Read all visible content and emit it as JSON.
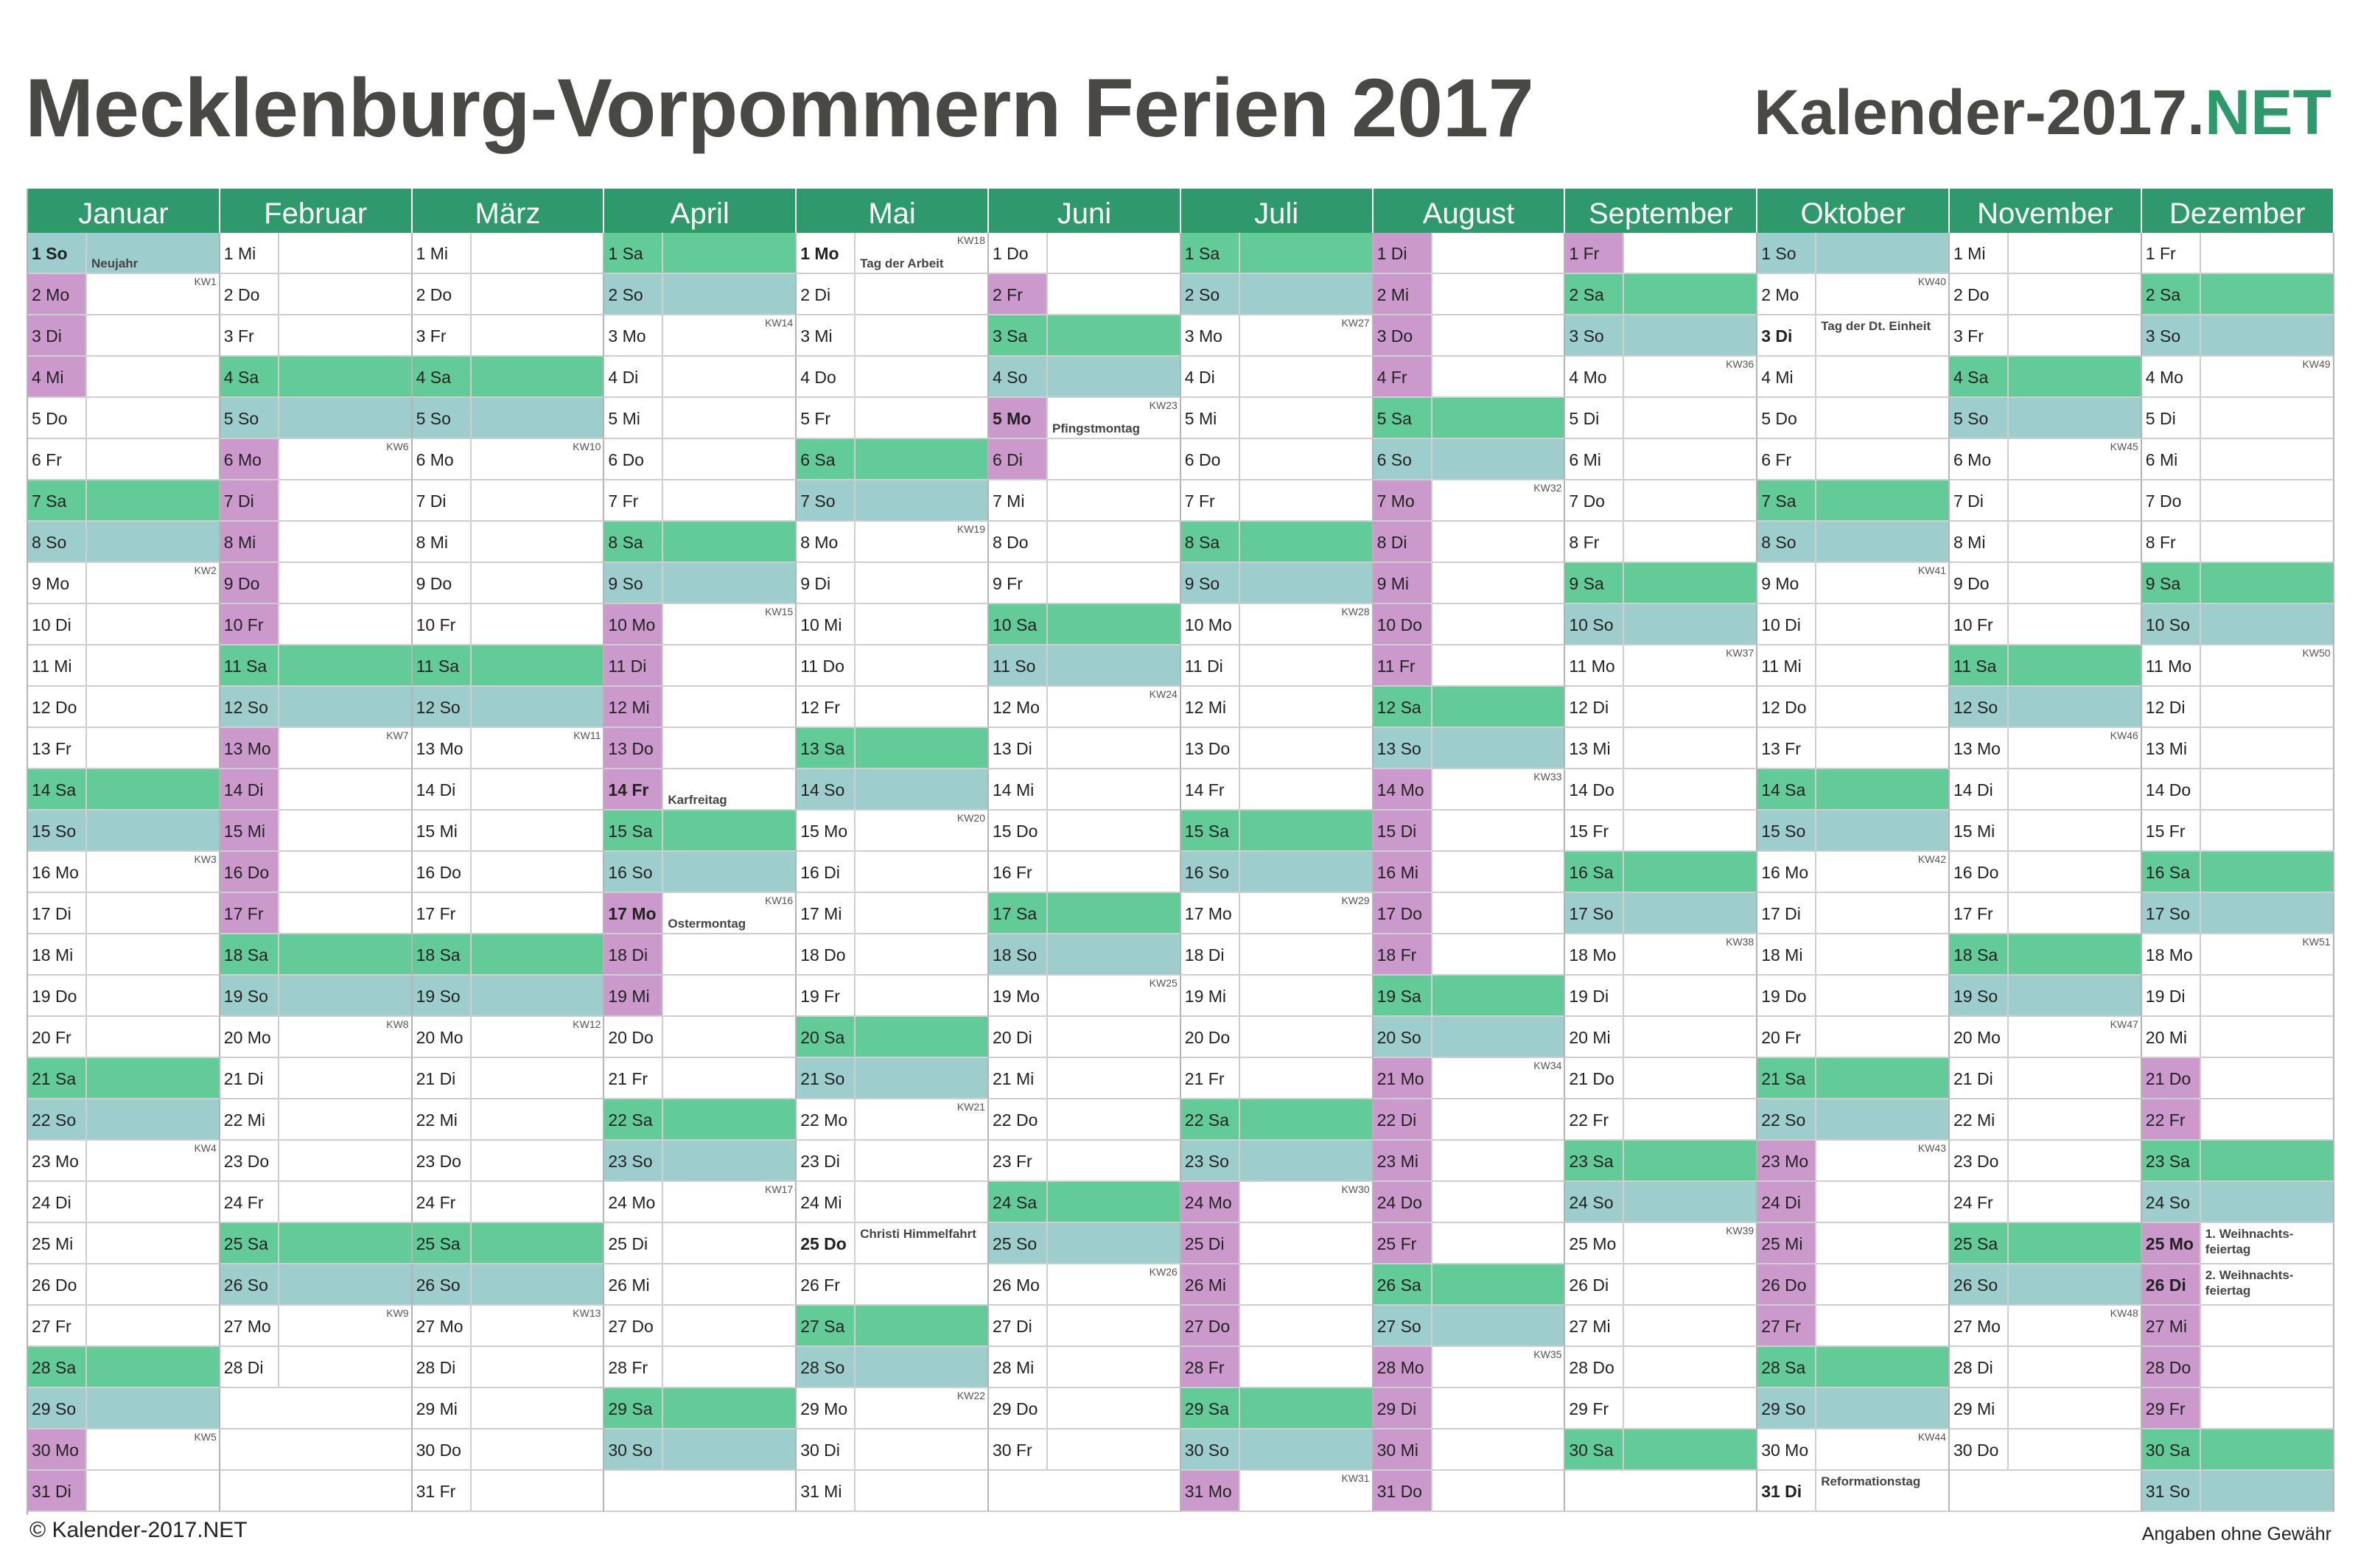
{
  "header": {
    "title": "Mecklenburg-Vorpommern Ferien 2017",
    "brand_main": "Kalender-2017.",
    "brand_accent": "NET"
  },
  "footer": {
    "copyright": "© Kalender-2017.NET",
    "disclaimer": "Angaben ohne Gewähr"
  },
  "colors": {
    "header_green": "#2e9a6c",
    "saturday": "#63cb98",
    "sunday": "#9dcdcd",
    "ferien_day": "#cc99cc",
    "brand_accent": "#2e9a6c"
  },
  "months": [
    {
      "name": "Januar",
      "days": 31,
      "start": 6,
      "ferien": [
        [
          1,
          4
        ],
        [
          30,
          31
        ]
      ],
      "holidays": [
        {
          "d": 1,
          "name": "Neujahr"
        }
      ],
      "kw": {
        "2": "KW1",
        "9": "KW2",
        "16": "KW3",
        "23": "KW4",
        "30": "KW5"
      }
    },
    {
      "name": "Februar",
      "days": 28,
      "start": 2,
      "ferien": [
        [
          6,
          18
        ]
      ],
      "holidays": [],
      "kw": {
        "6": "KW6",
        "13": "KW7",
        "20": "KW8",
        "27": "KW9"
      }
    },
    {
      "name": "März",
      "days": 31,
      "start": 2,
      "ferien": [],
      "holidays": [],
      "kw": {
        "6": "KW10",
        "13": "KW11",
        "20": "KW12",
        "27": "KW13"
      }
    },
    {
      "name": "April",
      "days": 30,
      "start": 5,
      "ferien": [
        [
          10,
          19
        ]
      ],
      "holidays": [
        {
          "d": 14,
          "name": "Karfreitag"
        },
        {
          "d": 17,
          "name": "Ostermontag"
        }
      ],
      "kw": {
        "3": "KW14",
        "10": "KW15",
        "17": "KW16",
        "24": "KW17"
      }
    },
    {
      "name": "Mai",
      "days": 31,
      "start": 0,
      "ferien": [],
      "holidays": [
        {
          "d": 1,
          "name": "Tag der Arbeit"
        },
        {
          "d": 25,
          "name": "Christi Himmelfahrt"
        }
      ],
      "kw": {
        "1": "KW18",
        "8": "KW19",
        "15": "KW20",
        "22": "KW21",
        "29": "KW22"
      }
    },
    {
      "name": "Juni",
      "days": 30,
      "start": 3,
      "ferien": [
        [
          2,
          6
        ]
      ],
      "holidays": [
        {
          "d": 5,
          "name": "Pfingstmontag"
        }
      ],
      "kw": {
        "5": "KW23",
        "12": "KW24",
        "19": "KW25",
        "26": "KW26"
      }
    },
    {
      "name": "Juli",
      "days": 31,
      "start": 5,
      "ferien": [
        [
          24,
          31
        ]
      ],
      "holidays": [],
      "kw": {
        "3": "KW27",
        "10": "KW28",
        "17": "KW29",
        "24": "KW30",
        "31": "KW31"
      }
    },
    {
      "name": "August",
      "days": 31,
      "start": 1,
      "ferien": [
        [
          1,
          4
        ],
        [
          7,
          11
        ],
        [
          14,
          18
        ],
        [
          21,
          25
        ],
        [
          28,
          31
        ]
      ],
      "holidays": [],
      "kw": {
        "7": "KW32",
        "14": "KW33",
        "21": "KW34",
        "28": "KW35"
      }
    },
    {
      "name": "September",
      "days": 30,
      "start": 4,
      "ferien": [
        [
          1,
          1
        ]
      ],
      "holidays": [],
      "kw": {
        "4": "KW36",
        "11": "KW37",
        "18": "KW38",
        "25": "KW39"
      }
    },
    {
      "name": "Oktober",
      "days": 31,
      "start": 6,
      "ferien": [
        [
          23,
          27
        ]
      ],
      "holidays": [
        {
          "d": 3,
          "name": "Tag der Dt. Einheit"
        },
        {
          "d": 31,
          "name": "Reformationstag"
        }
      ],
      "kw": {
        "2": "KW40",
        "9": "KW41",
        "16": "KW42",
        "23": "KW43",
        "30": "KW44"
      }
    },
    {
      "name": "November",
      "days": 30,
      "start": 2,
      "ferien": [],
      "holidays": [],
      "kw": {
        "6": "KW45",
        "13": "KW46",
        "20": "KW47",
        "27": "KW48"
      }
    },
    {
      "name": "Dezember",
      "days": 31,
      "start": 4,
      "ferien": [
        [
          21,
          22
        ],
        [
          25,
          29
        ]
      ],
      "holidays": [
        {
          "d": 25,
          "name": "1. Weihnachts-feiertag"
        },
        {
          "d": 26,
          "name": "2. Weihnachts-feiertag"
        }
      ],
      "kw": {
        "4": "KW49",
        "11": "KW50",
        "18": "KW51"
      }
    }
  ],
  "weekday_abbr": [
    "Mo",
    "Di",
    "Mi",
    "Do",
    "Fr",
    "Sa",
    "So"
  ]
}
